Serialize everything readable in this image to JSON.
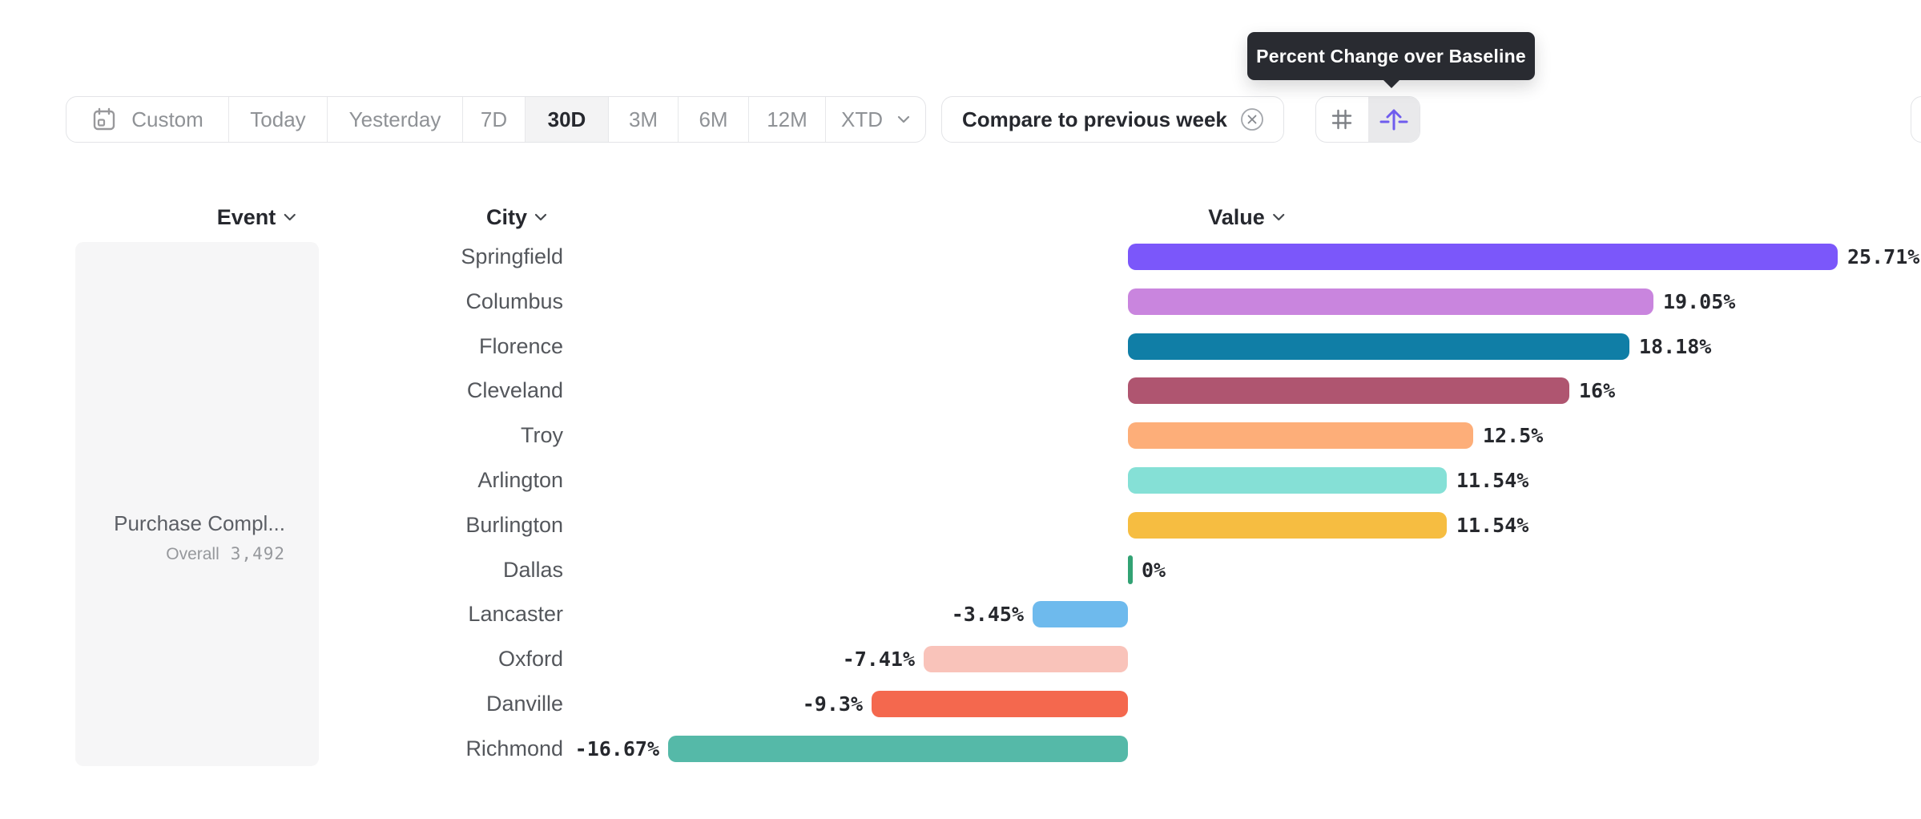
{
  "tooltip": {
    "text": "Percent Change over Baseline"
  },
  "toolbar": {
    "date_ranges": [
      {
        "label": "Custom",
        "icon": "calendar-icon",
        "selected": false
      },
      {
        "label": "Today",
        "selected": false
      },
      {
        "label": "Yesterday",
        "selected": false
      },
      {
        "label": "7D",
        "selected": false
      },
      {
        "label": "30D",
        "selected": true
      },
      {
        "label": "3M",
        "selected": false
      },
      {
        "label": "6M",
        "selected": false
      },
      {
        "label": "12M",
        "selected": false
      },
      {
        "label": "XTD",
        "icon": "chevron-down-icon",
        "selected": false
      }
    ],
    "comparison_chip": {
      "label": "Compare to previous week",
      "close_icon": "circle-x-icon"
    },
    "view_toggles": [
      {
        "name": "grid-view",
        "icon": "hash-icon",
        "selected": false
      },
      {
        "name": "percent-change-over-baseline",
        "icon": "arrow-up-baseline-icon",
        "selected": true
      }
    ]
  },
  "columns": {
    "event": "Event",
    "city": "City",
    "value": "Value"
  },
  "event_card": {
    "name": "Purchase Compl...",
    "metric_label": "Overall",
    "metric_value": "3,492"
  },
  "chart_data": {
    "type": "bar",
    "orientation": "horizontal",
    "title": "Percent Change over Baseline",
    "categories": [
      "Springfield",
      "Columbus",
      "Florence",
      "Cleveland",
      "Troy",
      "Arlington",
      "Burlington",
      "Dallas",
      "Lancaster",
      "Oxford",
      "Danville",
      "Richmond"
    ],
    "values": [
      25.71,
      19.05,
      18.18,
      16,
      12.5,
      11.54,
      11.54,
      0,
      -3.45,
      -7.41,
      -9.3,
      -16.67
    ],
    "value_labels": [
      "25.71%",
      "19.05%",
      "18.18%",
      "16%",
      "12.5%",
      "11.54%",
      "11.54%",
      "0%",
      "-3.45%",
      "-7.41%",
      "-9.3%",
      "-16.67%"
    ],
    "bar_colors": [
      "#7b57fa",
      "#c985de",
      "#107ea6",
      "#af5570",
      "#fdae79",
      "#85e0d6",
      "#f6bd41",
      "#32a274",
      "#6ebaed",
      "#f9c3ba",
      "#f4684e",
      "#55b9a8"
    ],
    "xlim": [
      -16.67,
      25.71
    ],
    "baseline": 0,
    "grid": false,
    "legend": "none"
  },
  "colors": {
    "accent_purple": "#6f5cee",
    "tooltip_bg": "#292b31",
    "selected_segment_bg": "#f3f3f4",
    "panel_bg": "#f6f6f7",
    "border": "#e3e4e7",
    "text_dark": "#26282e",
    "text_gray": "#8f9296",
    "text_mid": "#54575c",
    "baseline_tick_green": "#32a274"
  }
}
